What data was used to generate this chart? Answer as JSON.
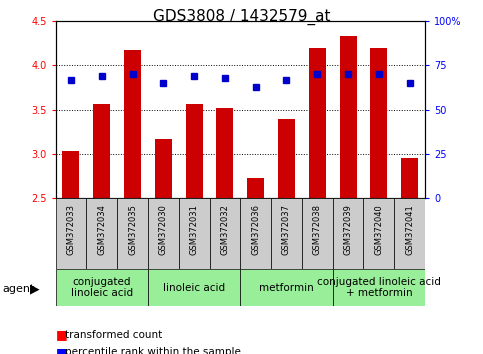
{
  "title": "GDS3808 / 1432579_at",
  "samples": [
    "GSM372033",
    "GSM372034",
    "GSM372035",
    "GSM372030",
    "GSM372031",
    "GSM372032",
    "GSM372036",
    "GSM372037",
    "GSM372038",
    "GSM372039",
    "GSM372040",
    "GSM372041"
  ],
  "transformed_count": [
    3.03,
    3.57,
    4.17,
    3.17,
    3.57,
    3.52,
    2.73,
    3.4,
    4.2,
    4.33,
    4.2,
    2.96
  ],
  "percentile_rank": [
    67,
    69,
    70,
    65,
    69,
    68,
    63,
    67,
    70,
    70,
    70,
    65
  ],
  "y_min": 2.5,
  "y_max": 4.5,
  "y_ticks_left": [
    2.5,
    3.0,
    3.5,
    4.0,
    4.5
  ],
  "y_ticks_right_vals": [
    0,
    25,
    50,
    75,
    100
  ],
  "y_ticks_right_labels": [
    "0",
    "25",
    "50",
    "75",
    "100%"
  ],
  "bar_color": "#cc0000",
  "dot_color": "#0000cc",
  "bar_width": 0.55,
  "agents": [
    {
      "label": "conjugated\nlinoleic acid",
      "start": 0,
      "end": 3
    },
    {
      "label": "linoleic acid",
      "start": 3,
      "end": 6
    },
    {
      "label": "metformin",
      "start": 6,
      "end": 9
    },
    {
      "label": "conjugated linoleic acid\n+ metformin",
      "start": 9,
      "end": 12
    }
  ],
  "sample_bg_color": "#cccccc",
  "agent_bg_color": "#99ee99",
  "agent_label": "agent",
  "legend_red_label": "transformed count",
  "legend_blue_label": "percentile rank within the sample",
  "title_fontsize": 11,
  "tick_fontsize": 7,
  "sample_fontsize": 6,
  "agent_fontsize": 7.5
}
